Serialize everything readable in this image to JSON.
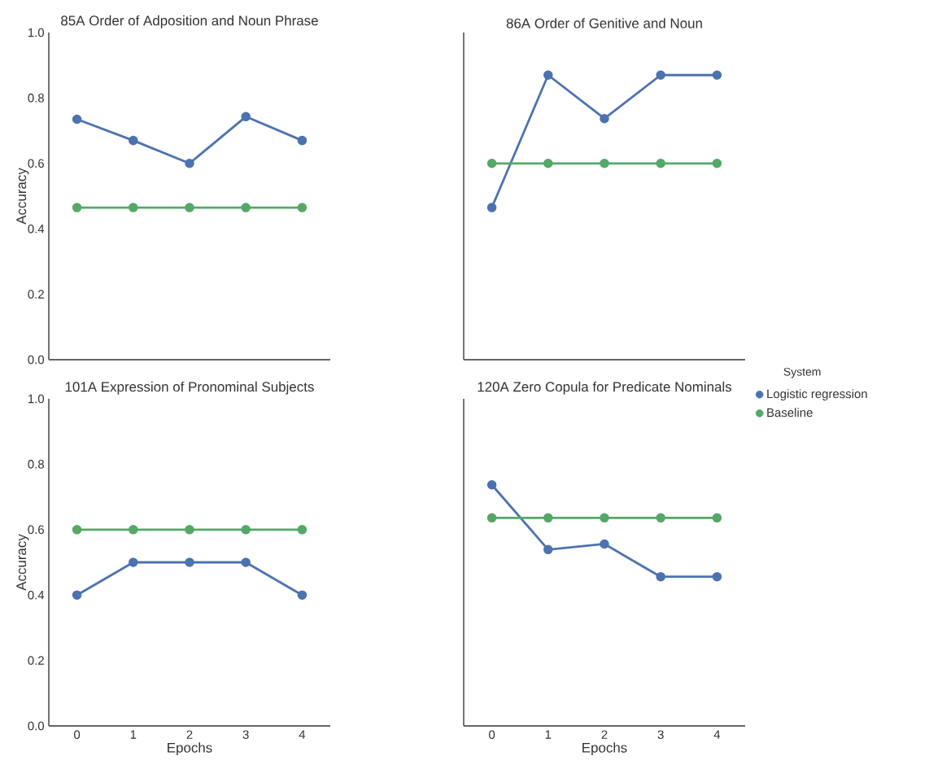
{
  "chart_data": [
    {
      "type": "line",
      "title": "85A Order of Adposition and Noun Phrase",
      "ylabel": "Accuracy",
      "x": [
        0,
        1,
        2,
        3,
        4
      ],
      "xlim": [
        -0.5,
        4.5
      ],
      "ylim": [
        0,
        1
      ],
      "yticks": [
        {
          "value": 0,
          "label": "0.0"
        },
        {
          "value": 0.2,
          "label": "0.2"
        },
        {
          "value": 0.4,
          "label": "0.4"
        },
        {
          "value": 0.6,
          "label": "0.6"
        },
        {
          "value": 0.8,
          "label": "0.8"
        },
        {
          "value": 1,
          "label": "1.0"
        }
      ],
      "tick_labels": "y",
      "marker": "circle",
      "grid": false,
      "series": [
        {
          "color": "#4c72b0",
          "values": [
            0.735,
            0.67,
            0.6,
            0.743,
            0.67
          ]
        },
        {
          "color": "#55a868",
          "values": [
            0.465,
            0.465,
            0.465,
            0.465,
            0.465
          ]
        }
      ]
    },
    {
      "type": "line",
      "title": "86A Order of Genitive and Noun",
      "x": [
        0,
        1,
        2,
        3,
        4
      ],
      "xlim": [
        -0.5,
        4.5
      ],
      "ylim": [
        0,
        1
      ],
      "tick_labels": false,
      "marker": "circle",
      "grid": false,
      "series": [
        {
          "color": "#4c72b0",
          "values": [
            0.465,
            0.87,
            0.737,
            0.87,
            0.87
          ]
        },
        {
          "color": "#55a868",
          "values": [
            0.6,
            0.6,
            0.6,
            0.6,
            0.6
          ]
        }
      ]
    },
    {
      "type": "line",
      "title": "101A Expression of Pronominal Subjects",
      "xlabel": "Epochs",
      "ylabel": "Accuracy",
      "x": [
        0,
        1,
        2,
        3,
        4
      ],
      "xlim": [
        -0.5,
        4.5
      ],
      "xticks": [
        0,
        1,
        2,
        3,
        4
      ],
      "ylim": [
        0,
        1
      ],
      "yticks": [
        {
          "value": 0,
          "label": "0.0"
        },
        {
          "value": 0.2,
          "label": "0.2"
        },
        {
          "value": 0.4,
          "label": "0.4"
        },
        {
          "value": 0.6,
          "label": "0.6"
        },
        {
          "value": 0.8,
          "label": "0.8"
        },
        {
          "value": 1,
          "label": "1.0"
        }
      ],
      "marker": "circle",
      "grid": false,
      "series": [
        {
          "color": "#4c72b0",
          "values": [
            0.4,
            0.5,
            0.5,
            0.5,
            0.4
          ]
        },
        {
          "color": "#55a868",
          "values": [
            0.6,
            0.6,
            0.6,
            0.6,
            0.6
          ]
        }
      ]
    },
    {
      "type": "line",
      "title": "120A Zero Copula for Predicate Nominals",
      "xlabel": "Epochs",
      "x": [
        0,
        1,
        2,
        3,
        4
      ],
      "xlim": [
        -0.5,
        4.5
      ],
      "xticks": [
        0,
        1,
        2,
        3,
        4
      ],
      "ylim": [
        0,
        1
      ],
      "tick_labels": "x",
      "marker": "circle",
      "grid": false,
      "legend": "right",
      "legend_title": "System",
      "series": [
        {
          "name": "Logistic regression",
          "color": "#4c72b0",
          "values": [
            0.737,
            0.539,
            0.556,
            0.456,
            0.456
          ]
        },
        {
          "name": "Baseline",
          "color": "#55a868",
          "values": [
            0.636,
            0.636,
            0.636,
            0.636,
            0.636
          ]
        }
      ]
    }
  ]
}
